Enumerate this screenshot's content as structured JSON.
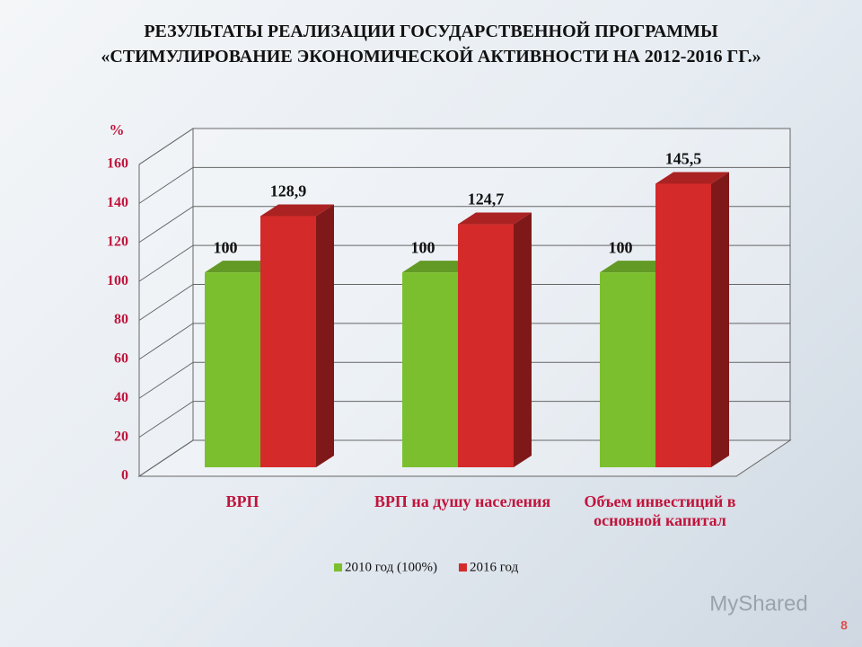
{
  "chart_data": {
    "type": "bar3d",
    "title": [
      "РЕЗУЛЬТАТЫ РЕАЛИЗАЦИИ ГОСУДАРСТВЕННОЙ ПРОГРАММЫ",
      "«СТИМУЛИРОВАНИЕ ЭКОНОМИЧЕСКОЙ АКТИВНОСТИ НА 2012-2016 ГГ.»"
    ],
    "y_label": "%",
    "categories": [
      "ВРП",
      "ВРП на душу населения",
      "Объем инвестиций в основной капитал"
    ],
    "series": [
      {
        "name": "2010 год (100%)",
        "color": "#7cbf2e",
        "values": [
          100,
          100,
          100
        ]
      },
      {
        "name": "2016 год",
        "color": "#d42a2a",
        "values": [
          128.9,
          124.7,
          145.5
        ],
        "value_labels": [
          "128,9",
          "124,7",
          "145,5"
        ]
      }
    ],
    "ylim": [
      0,
      160
    ],
    "yticks": [
      0,
      20,
      40,
      60,
      80,
      100,
      120,
      140,
      160
    ],
    "grid": true,
    "legend": "bottom"
  },
  "watermark": "MyShared",
  "page_number": "8"
}
